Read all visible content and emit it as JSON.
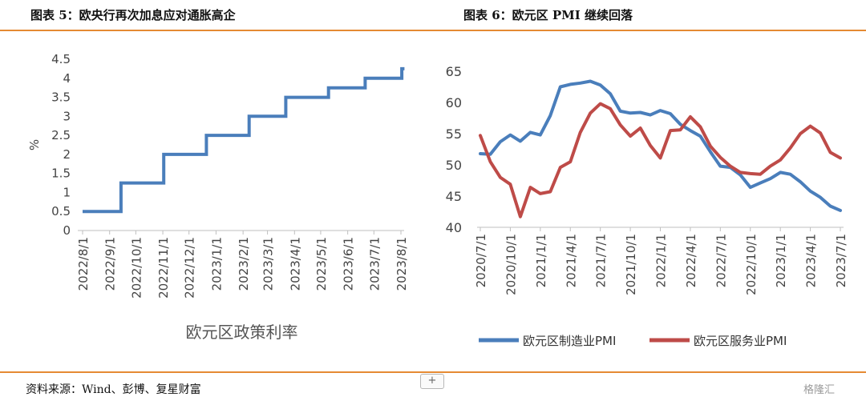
{
  "titles": {
    "left": "图表 5：欧央行再次加息应对通胀高企",
    "right": "图表  6：欧元区 PMI 继续回落"
  },
  "source": "资料来源：Wind、彭博、复星财富",
  "expand_label": "+",
  "watermark": "格隆汇",
  "chart_data": [
    {
      "type": "line",
      "step": true,
      "title": "",
      "xlabel": "欧元区政策利率",
      "ylabel": "%",
      "ylim": [
        0,
        4.5
      ],
      "yticks": [
        "0",
        "0.5",
        "1",
        "1.5",
        "2",
        "2.5",
        "3",
        "3.5",
        "4",
        "4.5"
      ],
      "xticks": [
        "2022/8/1",
        "2022/9/1",
        "2022/10/1",
        "2022/11/1",
        "2022/12/1",
        "2023/1/1",
        "2023/2/1",
        "2023/3/1",
        "2023/4/1",
        "2023/5/1",
        "2023/6/1",
        "2023/7/1",
        "2023/8/1"
      ],
      "color": "#4a7ebb",
      "series": [
        {
          "points": [
            [
              "2022-08-01",
              0.5
            ],
            [
              "2022-09-14",
              0.5
            ],
            [
              "2022-09-14",
              1.25
            ],
            [
              "2022-11-02",
              1.25
            ],
            [
              "2022-11-02",
              2.0
            ],
            [
              "2022-12-21",
              2.0
            ],
            [
              "2022-12-21",
              2.5
            ],
            [
              "2023-02-08",
              2.5
            ],
            [
              "2023-02-08",
              3.0
            ],
            [
              "2023-03-22",
              3.0
            ],
            [
              "2023-03-22",
              3.5
            ],
            [
              "2023-05-10",
              3.5
            ],
            [
              "2023-05-10",
              3.75
            ],
            [
              "2023-06-21",
              3.75
            ],
            [
              "2023-06-21",
              4.0
            ],
            [
              "2023-08-02",
              4.0
            ],
            [
              "2023-08-02",
              4.25
            ],
            [
              "2023-08-05",
              4.25
            ]
          ]
        }
      ]
    },
    {
      "type": "line",
      "title": "",
      "ylim": [
        40,
        65
      ],
      "yticks": [
        "40",
        "45",
        "50",
        "55",
        "60",
        "65"
      ],
      "xticks": [
        "2020/7/1",
        "2020/10/1",
        "2021/1/1",
        "2021/4/1",
        "2021/7/1",
        "2021/10/1",
        "2022/1/1",
        "2022/4/1",
        "2022/7/1",
        "2022/10/1",
        "2023/1/1",
        "2023/4/1",
        "2023/7/1"
      ],
      "legend": "bottom",
      "start_month": "2020-07",
      "series": [
        {
          "name": "欧元区制造业PMI",
          "color": "#4a7ebb",
          "values": [
            51.8,
            51.7,
            53.7,
            54.8,
            53.8,
            55.2,
            54.8,
            57.9,
            62.5,
            62.9,
            63.1,
            63.4,
            62.8,
            61.4,
            58.6,
            58.3,
            58.4,
            58.0,
            58.7,
            58.2,
            56.5,
            55.5,
            54.6,
            52.1,
            49.8,
            49.6,
            48.4,
            46.4,
            47.1,
            47.8,
            48.8,
            48.5,
            47.3,
            45.8,
            44.8,
            43.4,
            42.7
          ]
        },
        {
          "name": "欧元区服务业PMI",
          "color": "#be4b48",
          "values": [
            54.7,
            50.5,
            48.0,
            46.9,
            41.7,
            46.4,
            45.4,
            45.7,
            49.6,
            50.5,
            55.2,
            58.3,
            59.8,
            59.0,
            56.4,
            54.6,
            55.9,
            53.1,
            51.1,
            55.5,
            55.6,
            57.7,
            56.1,
            53.0,
            51.2,
            49.8,
            48.8,
            48.6,
            48.5,
            49.8,
            50.8,
            52.7,
            55.0,
            56.2,
            55.1,
            52.0,
            51.1
          ]
        }
      ]
    }
  ]
}
